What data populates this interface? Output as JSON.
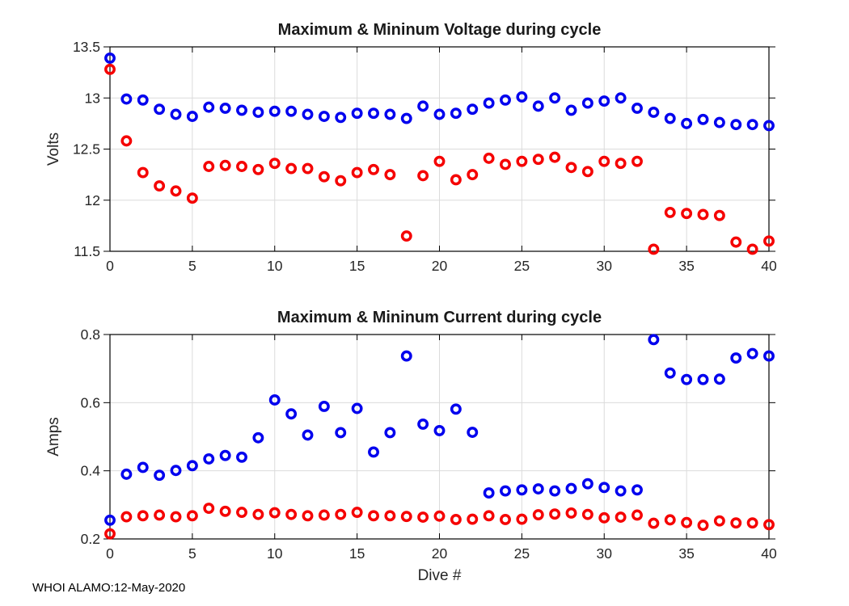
{
  "figure": {
    "footer": "WHOI ALAMO:12-May-2020",
    "colors": {
      "max_series": "#0000ee",
      "min_series": "#f50000",
      "grid": "#dbdbdb",
      "axis": "#000000",
      "tick_label": "#262626",
      "title": "#1a1a1a",
      "background": "#ffffff"
    }
  },
  "chart_data": [
    {
      "type": "scatter",
      "title": "Maximum & Mininum Voltage during cycle",
      "xlabel": "",
      "ylabel": "Volts",
      "xlim": [
        0,
        40
      ],
      "ylim": [
        11.5,
        13.5
      ],
      "xticks": [
        0,
        5,
        10,
        15,
        20,
        25,
        30,
        35,
        40
      ],
      "yticks": [
        11.5,
        12,
        12.5,
        13,
        13.5
      ],
      "grid": true,
      "legend": "none",
      "x": [
        0,
        1,
        2,
        3,
        4,
        5,
        6,
        7,
        8,
        9,
        10,
        11,
        12,
        13,
        14,
        15,
        16,
        17,
        18,
        19,
        20,
        21,
        22,
        23,
        24,
        25,
        26,
        27,
        28,
        29,
        30,
        31,
        32,
        33,
        34,
        35,
        36,
        37,
        38,
        39,
        40
      ],
      "series": [
        {
          "name": "max-voltage",
          "color": "#0000ee",
          "marker": "o",
          "values": [
            13.39,
            12.99,
            12.98,
            12.89,
            12.84,
            12.82,
            12.91,
            12.9,
            12.88,
            12.86,
            12.87,
            12.87,
            12.84,
            12.82,
            12.81,
            12.85,
            12.85,
            12.84,
            12.8,
            12.92,
            12.84,
            12.85,
            12.89,
            12.95,
            12.98,
            13.01,
            12.92,
            13.0,
            12.88,
            12.95,
            12.97,
            13.0,
            12.9,
            12.86,
            12.8,
            12.75,
            12.79,
            12.76,
            12.74,
            12.74,
            12.73
          ]
        },
        {
          "name": "min-voltage",
          "color": "#f50000",
          "marker": "o",
          "values": [
            13.28,
            12.58,
            12.27,
            12.14,
            12.09,
            12.02,
            12.33,
            12.34,
            12.33,
            12.3,
            12.36,
            12.31,
            12.31,
            12.23,
            12.19,
            12.27,
            12.3,
            12.25,
            11.65,
            12.24,
            12.38,
            12.2,
            12.25,
            12.41,
            12.35,
            12.38,
            12.4,
            12.42,
            12.32,
            12.28,
            12.38,
            12.36,
            12.38,
            11.52,
            11.88,
            11.87,
            11.86,
            11.85,
            11.59,
            11.52,
            11.6
          ]
        }
      ]
    },
    {
      "type": "scatter",
      "title": "Maximum & Mininum Current during cycle",
      "xlabel": "Dive #",
      "ylabel": "Amps",
      "xlim": [
        0,
        40
      ],
      "ylim": [
        0.2,
        0.8
      ],
      "xticks": [
        0,
        5,
        10,
        15,
        20,
        25,
        30,
        35,
        40
      ],
      "yticks": [
        0.2,
        0.4,
        0.6,
        0.8
      ],
      "grid": true,
      "legend": "none",
      "x": [
        0,
        1,
        2,
        3,
        4,
        5,
        6,
        7,
        8,
        9,
        10,
        11,
        12,
        13,
        14,
        15,
        16,
        17,
        18,
        19,
        20,
        21,
        22,
        23,
        24,
        25,
        26,
        27,
        28,
        29,
        30,
        31,
        32,
        33,
        34,
        35,
        36,
        37,
        38,
        39,
        40
      ],
      "series": [
        {
          "name": "max-current",
          "color": "#0000ee",
          "marker": "o",
          "values": [
            0.255,
            0.39,
            0.41,
            0.387,
            0.401,
            0.415,
            0.435,
            0.445,
            0.44,
            0.497,
            0.608,
            0.567,
            0.505,
            0.589,
            0.512,
            0.583,
            0.455,
            0.512,
            0.737,
            0.537,
            0.518,
            0.581,
            0.513,
            0.335,
            0.341,
            0.344,
            0.347,
            0.341,
            0.348,
            0.362,
            0.351,
            0.341,
            0.344,
            0.785,
            0.687,
            0.668,
            0.668,
            0.669,
            0.731,
            0.744,
            0.737
          ]
        },
        {
          "name": "min-current",
          "color": "#f50000",
          "marker": "o",
          "values": [
            0.215,
            0.265,
            0.268,
            0.27,
            0.265,
            0.268,
            0.29,
            0.281,
            0.278,
            0.272,
            0.277,
            0.272,
            0.268,
            0.27,
            0.272,
            0.278,
            0.268,
            0.268,
            0.266,
            0.264,
            0.267,
            0.257,
            0.258,
            0.268,
            0.257,
            0.258,
            0.271,
            0.273,
            0.276,
            0.272,
            0.262,
            0.264,
            0.27,
            0.246,
            0.256,
            0.248,
            0.24,
            0.253,
            0.247,
            0.247,
            0.242
          ]
        }
      ]
    }
  ]
}
